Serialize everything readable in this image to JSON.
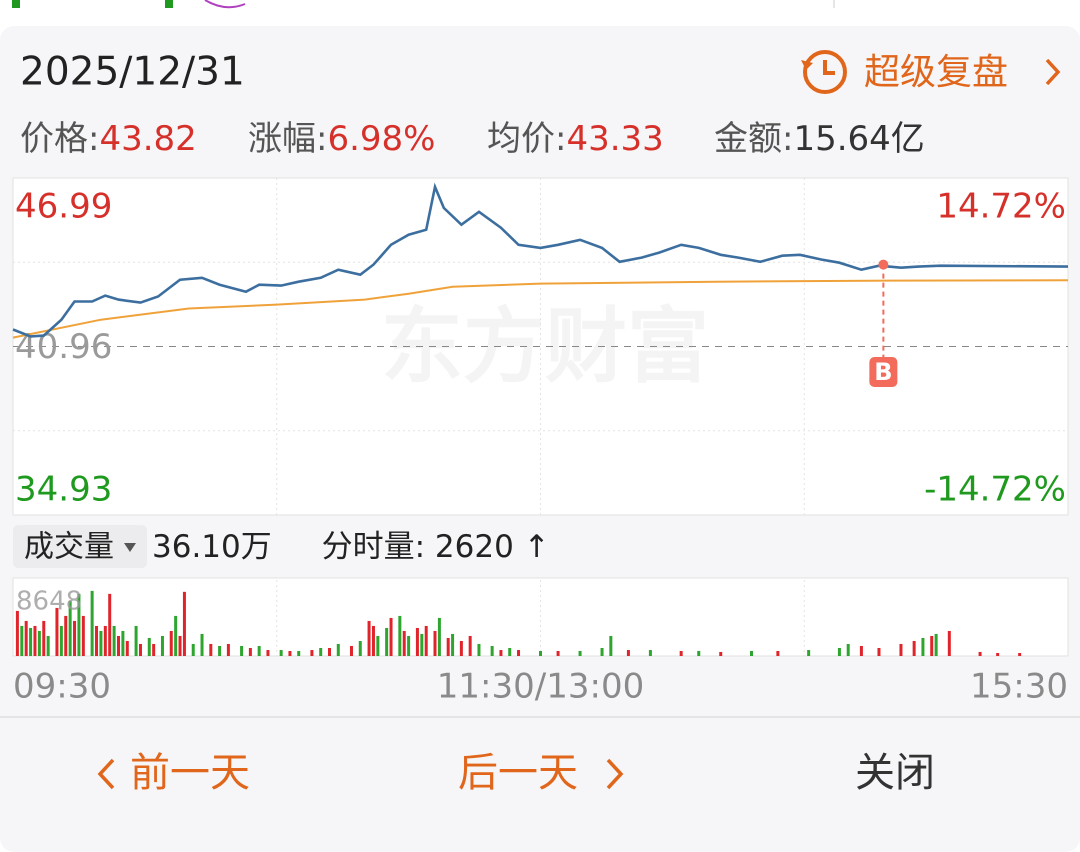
{
  "header": {
    "date": "2025/12/31",
    "replay": "超级复盘"
  },
  "stats": [
    {
      "label": "价格:",
      "value": "43.82",
      "color": "#d6302b"
    },
    {
      "label": "涨幅:",
      "value": "6.98%",
      "color": "#d6302b"
    },
    {
      "label": "均价:",
      "value": "43.33",
      "color": "#d6302b"
    },
    {
      "label": "金额:",
      "value": "15.64亿",
      "color": "#333333"
    }
  ],
  "watermark": "东方财富",
  "volume_header": {
    "selector": "成交量",
    "total": "36.10万",
    "tick_label": "分时量:",
    "tick_value": "2620",
    "tick_arrow": "↑"
  },
  "buttons": {
    "prev": "前一天",
    "next": "后一天",
    "close": "关闭"
  },
  "chart_data": [
    {
      "type": "line",
      "xlim": [
        0,
        240
      ],
      "xticks": [
        {
          "value": 0,
          "label": "09:30"
        },
        {
          "value": 120,
          "label": "11:30/13:00"
        },
        {
          "value": 240,
          "label": "15:30"
        }
      ],
      "xgrid": [
        60,
        120,
        180
      ],
      "ylim": [
        34.93,
        46.99
      ],
      "yticks": [
        46.99,
        40.96,
        34.93
      ],
      "ygrid": [
        43.975,
        37.945
      ],
      "y2lim": [
        -14.72,
        14.72
      ],
      "y2ticks": [
        {
          "value": 14.72,
          "label": "14.72%"
        },
        {
          "value": -14.72,
          "label": "-14.72%"
        }
      ],
      "up_color": "#d6302b",
      "down_color": "#1f9a1f",
      "flat_color": "#9a9a9a",
      "series": [
        {
          "color": "#3c6f9f",
          "x": [
            0,
            4,
            7,
            11,
            14,
            18,
            21,
            24,
            29,
            33,
            38,
            43,
            47,
            53,
            56,
            61,
            65,
            70,
            74,
            79,
            82,
            86,
            90,
            94,
            96,
            98,
            102,
            106,
            111,
            115,
            120,
            124,
            129,
            134,
            138,
            143,
            147,
            152,
            156,
            161,
            165,
            170,
            175,
            179,
            184,
            188,
            193,
            197,
            202,
            206,
            211,
            240
          ],
          "values": [
            41.57,
            41.32,
            41.35,
            41.92,
            42.57,
            42.57,
            42.78,
            42.64,
            42.53,
            42.75,
            43.35,
            43.42,
            43.17,
            42.92,
            43.17,
            43.14,
            43.28,
            43.42,
            43.71,
            43.53,
            43.89,
            44.6,
            44.96,
            45.14,
            46.67,
            45.92,
            45.32,
            45.78,
            45.21,
            44.6,
            44.49,
            44.6,
            44.78,
            44.49,
            43.99,
            44.14,
            44.32,
            44.6,
            44.49,
            44.24,
            44.14,
            43.99,
            44.21,
            44.24,
            44.07,
            43.96,
            43.71,
            43.85,
            43.78,
            43.82,
            43.85,
            43.82
          ]
        },
        {
          "color": "#f0a23a",
          "x": [
            0,
            20,
            40,
            60,
            80,
            90,
            100,
            120,
            160,
            200,
            240
          ],
          "values": [
            41.28,
            41.92,
            42.32,
            42.46,
            42.64,
            42.85,
            43.1,
            43.21,
            43.28,
            43.32,
            43.33
          ]
        }
      ],
      "annotations": [
        {
          "x": 198,
          "y": 43.89,
          "label": "B",
          "color": "#f26b5b"
        }
      ]
    },
    {
      "type": "bar",
      "xlim": [
        0,
        240
      ],
      "xgrid": [
        60,
        120,
        180
      ],
      "ylim": [
        0,
        8648
      ],
      "yticks": [
        8648
      ],
      "series": [
        {
          "color": "#e0242b",
          "x": [
            1,
            3,
            5,
            7,
            10,
            12,
            14,
            16,
            19,
            21,
            22,
            24,
            26,
            29,
            32,
            36,
            38,
            39,
            45,
            49,
            54,
            58,
            63,
            68,
            72,
            77,
            81,
            82,
            86,
            89,
            92,
            94,
            96,
            99,
            102,
            104,
            111,
            115,
            124,
            140,
            152,
            161,
            174,
            193,
            197,
            202,
            205,
            209,
            213,
            220,
            224,
            229
          ],
          "values": [
            5130,
            3990,
            3420,
            3990,
            5470,
            4560,
            3990,
            4560,
            3420,
            3420,
            7070,
            2280,
            1710,
            1370,
            1370,
            2850,
            2280,
            7300,
            1370,
            1370,
            910,
            680,
            570,
            680,
            910,
            1140,
            3990,
            3420,
            4330,
            2850,
            3190,
            3420,
            2850,
            2050,
            1710,
            2280,
            680,
            680,
            570,
            680,
            570,
            460,
            570,
            1140,
            910,
            1370,
            1710,
            2280,
            2850,
            460,
            340,
            340
          ]
        },
        {
          "color": "#2ea52e",
          "x": [
            2,
            4,
            6,
            8,
            11,
            13,
            15,
            18,
            20,
            23,
            25,
            28,
            31,
            34,
            37,
            41,
            43,
            47,
            52,
            56,
            61,
            65,
            70,
            74,
            79,
            83,
            85,
            88,
            90,
            93,
            97,
            100,
            106,
            109,
            113,
            120,
            129,
            134,
            136,
            145,
            156,
            168,
            181,
            188,
            190,
            207,
            210
          ],
          "values": [
            3420,
            3190,
            2850,
            2280,
            3420,
            6270,
            7070,
            7410,
            2850,
            3420,
            2850,
            3420,
            2050,
            2280,
            4560,
            1370,
            2510,
            1140,
            1140,
            1140,
            680,
            570,
            910,
            1370,
            1710,
            2280,
            3190,
            4560,
            2280,
            2510,
            4330,
            2510,
            1370,
            1140,
            910,
            570,
            570,
            910,
            2280,
            680,
            570,
            570,
            680,
            910,
            1370,
            2050,
            2510
          ]
        }
      ]
    }
  ]
}
